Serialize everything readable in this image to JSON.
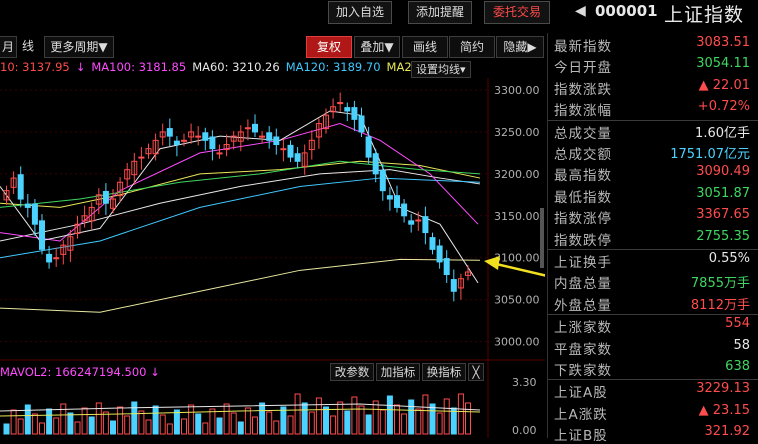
{
  "header": {
    "buttons": [
      "加入自选",
      "添加提醒",
      "委托交易"
    ],
    "arrow": "◀",
    "code": "000001",
    "name": "上证指数"
  },
  "toolbar": {
    "left": [
      "月",
      "线",
      "更多周期▼"
    ],
    "right": [
      "复权",
      "叠加▼",
      "画线",
      "简约",
      "隐藏▶"
    ]
  },
  "ma_line": {
    "items": [
      {
        "text": "10: 3137.95",
        "color": "#ff4c4c"
      },
      {
        "text": "↓",
        "color": "#ff4cff"
      },
      {
        "text": "MA100: 3181.85",
        "color": "#ff4cff"
      },
      {
        "text": "MA60: 3210.26",
        "color": "#e8e8e8"
      },
      {
        "text": "MA120: 3189.70",
        "color": "#40c8ff"
      },
      {
        "text": "MA2",
        "color": "#e8e858"
      }
    ],
    "settings_label": "设置均线▾"
  },
  "y_axis": [
    "3300.00",
    "3250.00",
    "3200.00",
    "3150.00",
    "3100.00",
    "3050.00",
    "3000.00"
  ],
  "sub_chart": {
    "indicator": "MAVOL2: 166247194.500",
    "indicator_arrow": "↓",
    "buttons": [
      "改参数",
      "加指标",
      "换指标",
      "╳"
    ],
    "axis": [
      "3.30",
      "0.00"
    ]
  },
  "colors": {
    "up": "#ff4c4c",
    "down": "#3ed660",
    "cyan": "#4cd2ff",
    "accent": "#b01818"
  },
  "panel": {
    "rows": [
      {
        "label": "最新指数",
        "value": "3083.51",
        "cls": "up"
      },
      {
        "label": "今日开盘",
        "value": "3054.11",
        "cls": "dn"
      },
      {
        "label": "指数涨跌",
        "value": "▲ 22.01",
        "cls": "up"
      },
      {
        "label": "指数涨幅",
        "value": "+0.72%",
        "cls": "up"
      },
      {
        "label": "总成交量",
        "value": "1.60亿手",
        "cls": "wh"
      },
      {
        "label": "总成交额",
        "value": "1751.07亿元",
        "cls": "cy"
      },
      {
        "label": "最高指数",
        "value": "3090.49",
        "cls": "up"
      },
      {
        "label": "最低指数",
        "value": "3051.87",
        "cls": "dn"
      },
      {
        "label": "指数涨停",
        "value": "3367.65",
        "cls": "up"
      },
      {
        "label": "指数跌停",
        "value": "2755.35",
        "cls": "dn"
      },
      {
        "label": "上证换手",
        "value": "0.55%",
        "cls": "wh"
      },
      {
        "label": "内盘总量",
        "value": "7855万手",
        "cls": "dn"
      },
      {
        "label": "外盘总量",
        "value": "8112万手",
        "cls": "up"
      },
      {
        "label": "上涨家数",
        "value": "554",
        "cls": "up"
      },
      {
        "label": "平盘家数",
        "value": "58",
        "cls": "wh"
      },
      {
        "label": "下跌家数",
        "value": "638",
        "cls": "dn"
      },
      {
        "label": "上证A股",
        "value": "3229.13",
        "cls": "up"
      },
      {
        "label": "上A涨跌",
        "value": "▲ 23.15",
        "cls": "up"
      },
      {
        "label": "上证B股",
        "value": "321.92",
        "cls": "up"
      }
    ]
  }
}
